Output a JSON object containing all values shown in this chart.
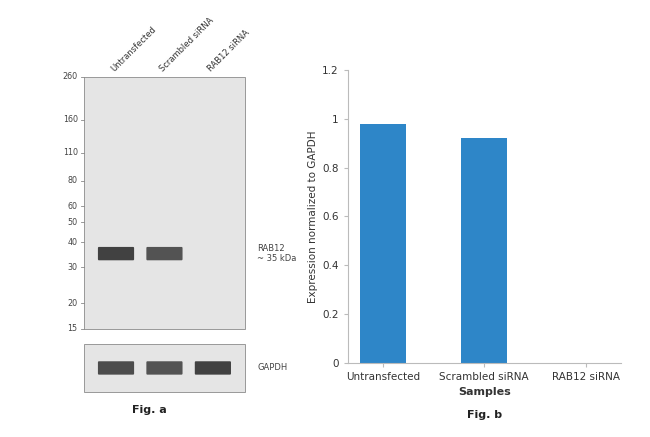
{
  "fig_width": 6.5,
  "fig_height": 4.37,
  "dpi": 100,
  "bar_categories": [
    "Untransfected",
    "Scrambled siRNA",
    "RAB12 siRNA"
  ],
  "bar_values": [
    0.98,
    0.92,
    0.0
  ],
  "bar_color": "#2e86c8",
  "bar_width": 0.45,
  "ylabel": "Expression normalized to GAPDH",
  "xlabel": "Samples",
  "ylim": [
    0,
    1.2
  ],
  "yticks": [
    0,
    0.2,
    0.4,
    0.6,
    0.8,
    1.0,
    1.2
  ],
  "ytick_labels": [
    "0",
    "0.2",
    "0.4",
    "0.6",
    "0.8",
    "1",
    "1.2"
  ],
  "fig_b_label": "Fig. b",
  "fig_a_label": "Fig. a",
  "wb_marker_labels": [
    "260",
    "160",
    "110",
    "80",
    "60",
    "50",
    "40",
    "30",
    "20",
    "15"
  ],
  "rab12_label": "RAB12\n~ 35 kDa",
  "gapdh_label": "GAPDH",
  "col_labels": [
    "Untransfected",
    "Scrambled siRNA",
    "RAB12 siRNA"
  ],
  "background_color": "#ffffff",
  "blot_bg": "#e5e5e5",
  "band_dark": "#2a2a2a",
  "marker_line_color": "#888888",
  "border_color": "#999999"
}
